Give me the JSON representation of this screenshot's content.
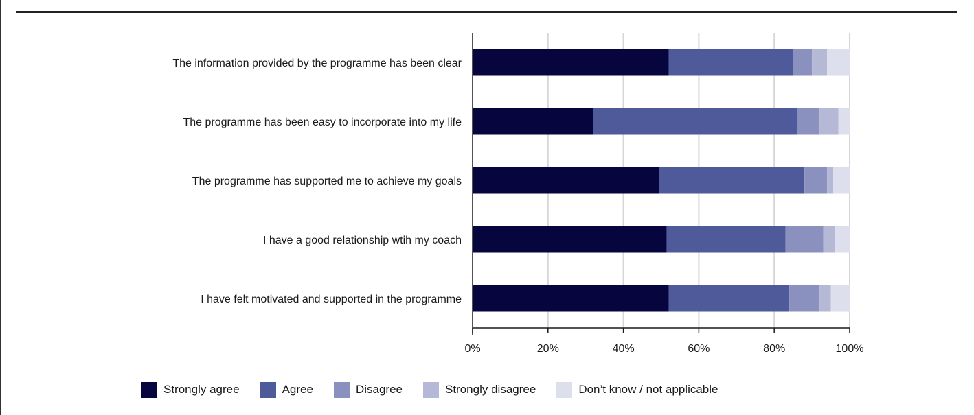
{
  "chart_data": {
    "type": "bar",
    "orientation": "horizontal",
    "stacked": true,
    "title": "",
    "xlabel": "",
    "ylabel": "",
    "xlim": [
      0,
      100
    ],
    "x_ticks": [
      "0%",
      "20%",
      "40%",
      "60%",
      "80%",
      "100%"
    ],
    "grid": true,
    "legend_position": "bottom",
    "categories": [
      "The information provided by the programme has been clear",
      "The programme has been easy to incorporate into my life",
      "The programme has supported me to achieve my goals",
      "I have a good relationship wtih my coach",
      "I have felt motivated and supported in the programme"
    ],
    "series": [
      {
        "name": "Strongly agree",
        "color": "#06053e",
        "values": [
          52,
          32,
          49.5,
          51.5,
          52
        ]
      },
      {
        "name": "Agree",
        "color": "#4f5a9a",
        "values": [
          33,
          54,
          38.5,
          31.5,
          32
        ]
      },
      {
        "name": "Disagree",
        "color": "#8b91bf",
        "values": [
          5,
          6,
          6,
          10,
          8
        ]
      },
      {
        "name": "Strongly disagree",
        "color": "#b6b9d6",
        "values": [
          4,
          5,
          1.5,
          3,
          3
        ]
      },
      {
        "name": "Don’t know / not applicable",
        "color": "#dedfec",
        "values": [
          6,
          3,
          4.5,
          4,
          5
        ]
      }
    ]
  }
}
